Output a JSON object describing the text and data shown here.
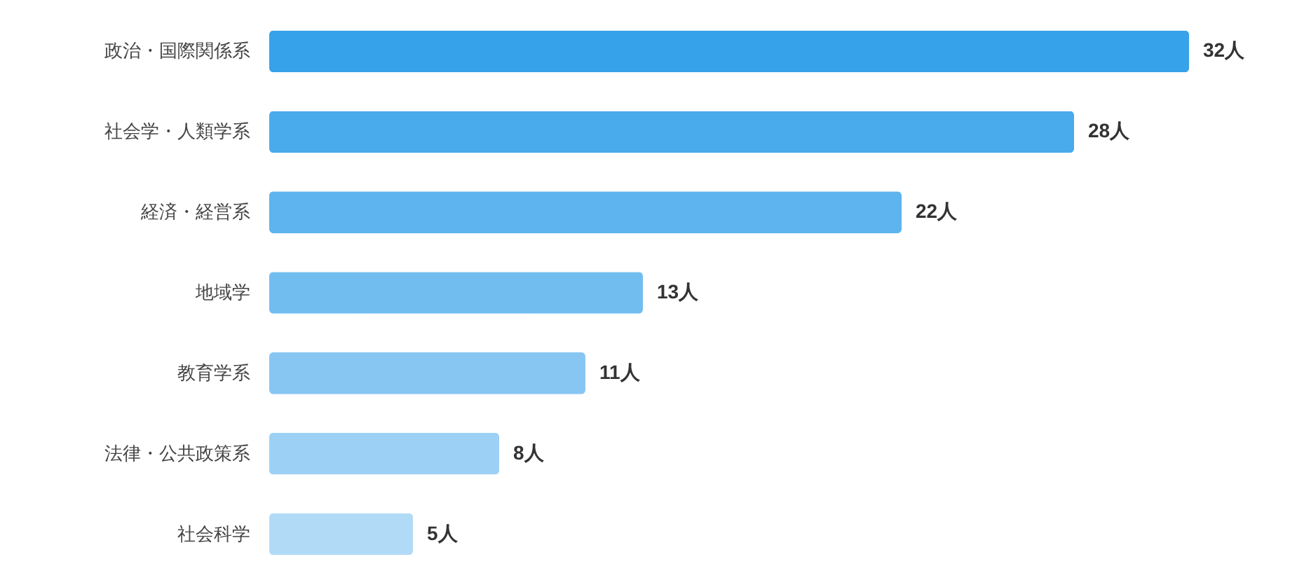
{
  "chart_data": {
    "type": "bar",
    "orientation": "horizontal",
    "categories": [
      "政治・国際関係系",
      "社会学・人類学系",
      "経済・経営系",
      "地域学",
      "教育学系",
      "法律・公共政策系",
      "社会科学"
    ],
    "values": [
      32,
      28,
      22,
      13,
      11,
      8,
      5
    ],
    "value_labels": [
      "32人",
      "28人",
      "22人",
      "13人",
      "11人",
      "8人",
      "5人"
    ],
    "colors": [
      "#36a2e9",
      "#4aabec",
      "#5eb4ee",
      "#72bdf0",
      "#87c6f3",
      "#9dd0f5",
      "#b1daf7"
    ]
  }
}
